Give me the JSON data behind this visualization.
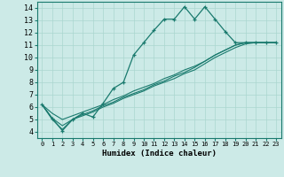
{
  "xlabel": "Humidex (Indice chaleur)",
  "background_color": "#cceae7",
  "line_color": "#1a7a6e",
  "grid_color": "#aad6d0",
  "xlim": [
    -0.5,
    23.5
  ],
  "ylim": [
    3.5,
    14.5
  ],
  "xticks": [
    0,
    1,
    2,
    3,
    4,
    5,
    6,
    7,
    8,
    9,
    10,
    11,
    12,
    13,
    14,
    15,
    16,
    17,
    18,
    19,
    20,
    21,
    22,
    23
  ],
  "yticks": [
    4,
    5,
    6,
    7,
    8,
    9,
    10,
    11,
    12,
    13,
    14
  ],
  "series_main": [
    6.2,
    5.1,
    4.1,
    5.0,
    5.5,
    5.2,
    6.3,
    7.5,
    8.0,
    10.2,
    11.2,
    12.2,
    13.1,
    13.1,
    14.1,
    13.1,
    14.1,
    13.1,
    12.1,
    11.2,
    11.2,
    11.2,
    11.2,
    11.2
  ],
  "series_lines": [
    [
      6.2,
      5.5,
      5.0,
      5.3,
      5.6,
      5.9,
      6.2,
      6.6,
      6.9,
      7.3,
      7.6,
      7.9,
      8.3,
      8.6,
      9.0,
      9.3,
      9.7,
      10.2,
      10.6,
      11.0,
      11.2,
      11.2,
      11.2,
      11.2
    ],
    [
      6.2,
      5.1,
      4.5,
      5.0,
      5.4,
      5.7,
      6.1,
      6.4,
      6.8,
      7.1,
      7.4,
      7.8,
      8.1,
      8.5,
      8.8,
      9.2,
      9.7,
      10.2,
      10.6,
      11.0,
      11.2,
      11.2,
      11.2,
      11.2
    ],
    [
      6.2,
      5.0,
      4.2,
      5.0,
      5.3,
      5.6,
      6.0,
      6.3,
      6.7,
      7.0,
      7.3,
      7.7,
      8.0,
      8.3,
      8.7,
      9.0,
      9.5,
      10.0,
      10.4,
      10.8,
      11.1,
      11.2,
      11.2,
      11.2
    ]
  ]
}
